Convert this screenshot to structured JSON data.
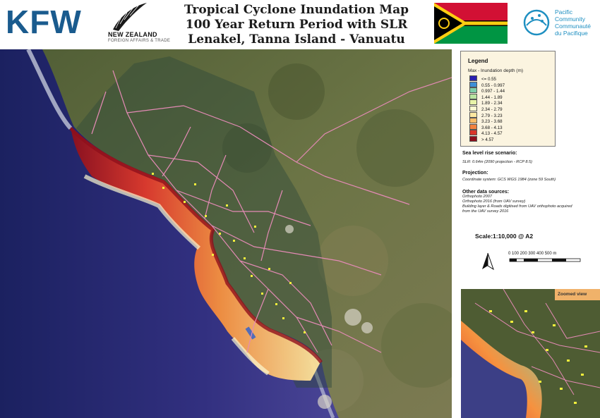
{
  "header": {
    "kfw_logo": "KFW",
    "nz_logo_name": "NEW ZEALAND",
    "nz_logo_sub": "FOREIGN AFFAIRS & TRADE",
    "title_line1": "Tropical Cyclone Inundation Map",
    "title_line2": "100 Year Return Period with SLR",
    "title_line3": "Lenakel, Tanna Island - Vanuatu",
    "spc_line1": "Pacific",
    "spc_line2": "Community",
    "spc_line3": "Communauté",
    "spc_line4": "du Pacifique"
  },
  "legend": {
    "title": "Legend",
    "subtitle": "Max - Inundation depth (m)",
    "classes": [
      {
        "label": "<= 0.55",
        "color": "#2a1fb0"
      },
      {
        "label": "0.55 - 0.997",
        "color": "#3e8fd6"
      },
      {
        "label": "0.997 - 1.44",
        "color": "#7ecfa8"
      },
      {
        "label": "1.44 - 1.89",
        "color": "#b8e4a0"
      },
      {
        "label": "1.89 - 2.34",
        "color": "#e8f4a8"
      },
      {
        "label": "2.34 - 2.79",
        "color": "#fbf8d0"
      },
      {
        "label": "2.79 - 3.23",
        "color": "#fde7a0"
      },
      {
        "label": "3.23 - 3.68",
        "color": "#fbbd68"
      },
      {
        "label": "3.68 - 4.13",
        "color": "#f3823e"
      },
      {
        "label": "4.13 - 4.57",
        "color": "#d9362a"
      },
      {
        "label": "> 4.57",
        "color": "#8e0f1c"
      }
    ]
  },
  "info": {
    "slr_head": "Sea level rise scenario:",
    "slr_text": "SLR: 0.64m (2090 projection - RCP 8.5)",
    "proj_head": "Projection:",
    "proj_text": "Coordinate system: GCS WGS 1984 (zone 59 South)",
    "sources_head": "Other data sources:",
    "sources_1": "Orthophoto 2007",
    "sources_2": "Orthophoto 2016 (from UAV survey)",
    "sources_3": "Building layer & Roads digitised from UAV orthophoto acquired",
    "sources_4": "from the UAV survey 2016",
    "scale": "Scale:1:10,000 @ A2",
    "scale_labels": "0   100 200 300 400 500 m"
  },
  "zoom": {
    "label": "Zoomed view"
  },
  "colors": {
    "sea_deep": "#1f2466",
    "sea_mid": "#3a3784",
    "land_green": "#5d6a3c",
    "roads": "#e48ab5",
    "buildings": "#f2ef3c"
  }
}
